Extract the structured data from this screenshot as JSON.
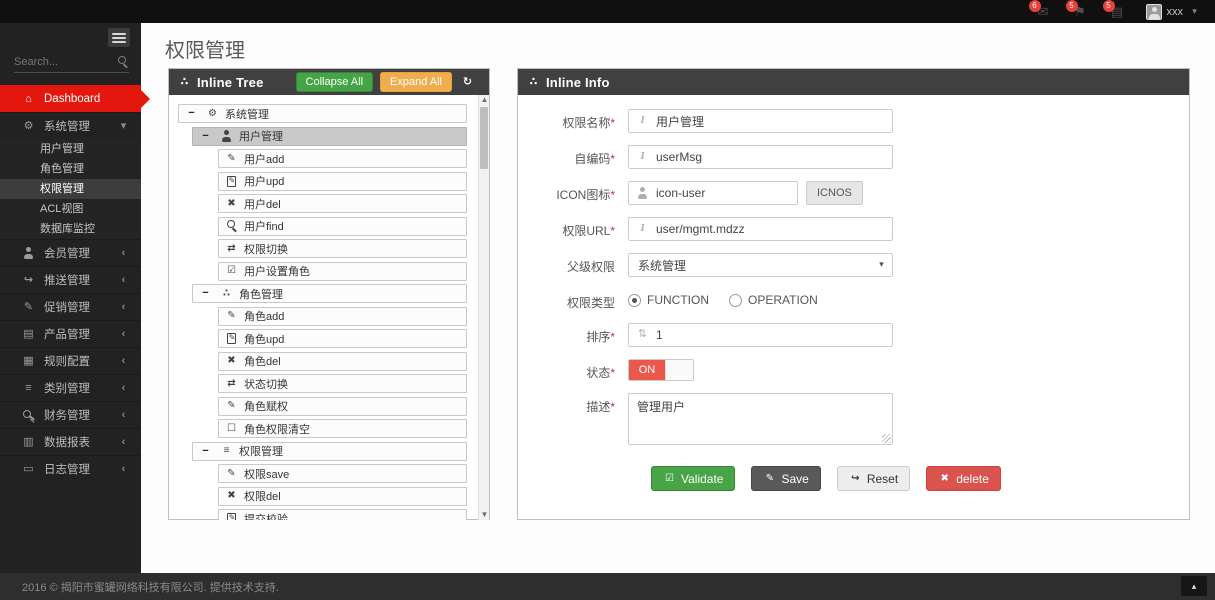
{
  "topbar": {
    "badges": [
      {
        "icon": "envelope",
        "count": "6"
      },
      {
        "icon": "flag",
        "count": "5"
      },
      {
        "icon": "tasks",
        "count": "5"
      }
    ],
    "user": {
      "name": "xxx"
    }
  },
  "sidebar": {
    "search_placeholder": "Search...",
    "menu": [
      {
        "id": "dashboard",
        "icon": "home",
        "label": "Dashboard",
        "active": true
      },
      {
        "id": "system-mgmt",
        "icon": "cogs",
        "label": "系统管理",
        "expanded": true,
        "children": [
          {
            "id": "user-mgmt",
            "label": "用户管理"
          },
          {
            "id": "role-mgmt",
            "label": "角色管理"
          },
          {
            "id": "permission-mgmt",
            "label": "权限管理",
            "active": true
          },
          {
            "id": "acl-view",
            "label": "ACL视图"
          },
          {
            "id": "db-monitor",
            "label": "数据库监控"
          }
        ]
      },
      {
        "id": "member-mgmt",
        "icon": "user",
        "label": "会员管理",
        "collapsible": true
      },
      {
        "id": "push-mgmt",
        "icon": "share",
        "label": "推送管理",
        "collapsible": true
      },
      {
        "id": "promotion-mgmt",
        "icon": "pencil",
        "label": "促销管理",
        "collapsible": true
      },
      {
        "id": "product-mgmt",
        "icon": "book",
        "label": "产品管理",
        "collapsible": true
      },
      {
        "id": "rule-config",
        "icon": "list-alt",
        "label": "规则配置",
        "collapsible": true
      },
      {
        "id": "category-mgmt",
        "icon": "bars",
        "label": "类别管理",
        "collapsible": true
      },
      {
        "id": "finance-mgmt",
        "icon": "key",
        "label": "财务管理",
        "collapsible": true
      },
      {
        "id": "data-report",
        "icon": "chart",
        "label": "数据报表",
        "collapsible": true
      },
      {
        "id": "log-mgmt",
        "icon": "card",
        "label": "日志管理",
        "collapsible": true
      }
    ]
  },
  "page": {
    "title": "权限管理"
  },
  "tree": {
    "title": "Inline Tree",
    "buttons": {
      "collapse": "Collapse All",
      "expand": "Expand All"
    },
    "nodes": [
      {
        "level": 0,
        "expander": true,
        "icon": "cogs",
        "label": "系统管理"
      },
      {
        "level": 1,
        "expander": true,
        "icon": "user",
        "label": "用户管理",
        "active": true
      },
      {
        "level": 2,
        "icon": "pencil",
        "label": "用户add"
      },
      {
        "level": 2,
        "icon": "edit",
        "label": "用户upd"
      },
      {
        "level": 2,
        "icon": "x",
        "label": "用户del"
      },
      {
        "level": 2,
        "icon": "search",
        "label": "用户find"
      },
      {
        "level": 2,
        "icon": "retweet",
        "label": "权限切换"
      },
      {
        "level": 2,
        "icon": "check-square",
        "label": "用户设置角色"
      },
      {
        "level": 1,
        "expander": true,
        "icon": "sitemap",
        "label": "角色管理"
      },
      {
        "level": 2,
        "icon": "pencil",
        "label": "角色add"
      },
      {
        "level": 2,
        "icon": "edit",
        "label": "角色upd"
      },
      {
        "level": 2,
        "icon": "x",
        "label": "角色del"
      },
      {
        "level": 2,
        "icon": "retweet",
        "label": "状态切换"
      },
      {
        "level": 2,
        "icon": "pencil",
        "label": "角色赋权"
      },
      {
        "level": 2,
        "icon": "square",
        "label": "角色权限清空"
      },
      {
        "level": 1,
        "expander": true,
        "icon": "list",
        "label": "权限管理"
      },
      {
        "level": 2,
        "icon": "pencil",
        "label": "权限save"
      },
      {
        "level": 2,
        "icon": "x",
        "label": "权限del"
      },
      {
        "level": 2,
        "icon": "edit",
        "label": "提交校验"
      }
    ]
  },
  "info": {
    "title": "Inline Info",
    "required_mark": "*",
    "fields": {
      "name": {
        "label": "权限名称",
        "value": "用户管理"
      },
      "code": {
        "label": "自编码",
        "value": "userMsg"
      },
      "icon": {
        "label": "ICON图标",
        "value": "icon-user",
        "button": "ICNOS"
      },
      "url": {
        "label": "权限URL",
        "value": "user/mgmt.mdzz"
      },
      "parent": {
        "label": "父级权限",
        "value": "系统管理"
      },
      "type": {
        "label": "权限类型",
        "options": [
          "FUNCTION",
          "OPERATION"
        ],
        "selected": "FUNCTION"
      },
      "order": {
        "label": "排序",
        "value": "1"
      },
      "status": {
        "label": "状态",
        "value": "ON"
      },
      "desc": {
        "label": "描述",
        "value": "管理用户"
      }
    },
    "buttons": [
      {
        "id": "validate",
        "label": "Validate"
      },
      {
        "id": "save",
        "label": "Save"
      },
      {
        "id": "reset",
        "label": "Reset"
      },
      {
        "id": "delete",
        "label": "delete"
      }
    ]
  },
  "footer": {
    "text": "2016 © 揭阳市蜜罐网络科技有限公司. 提供技术支持."
  },
  "colors": {
    "sidebar_active_red": "#e3170d",
    "badge_red": "#e9413a",
    "success_green": "#47a447",
    "warning_orange": "#f0ad4e",
    "danger_red": "#d9534f",
    "toggle_on_red": "#e9584a",
    "panel_header_gray": "#404040"
  }
}
